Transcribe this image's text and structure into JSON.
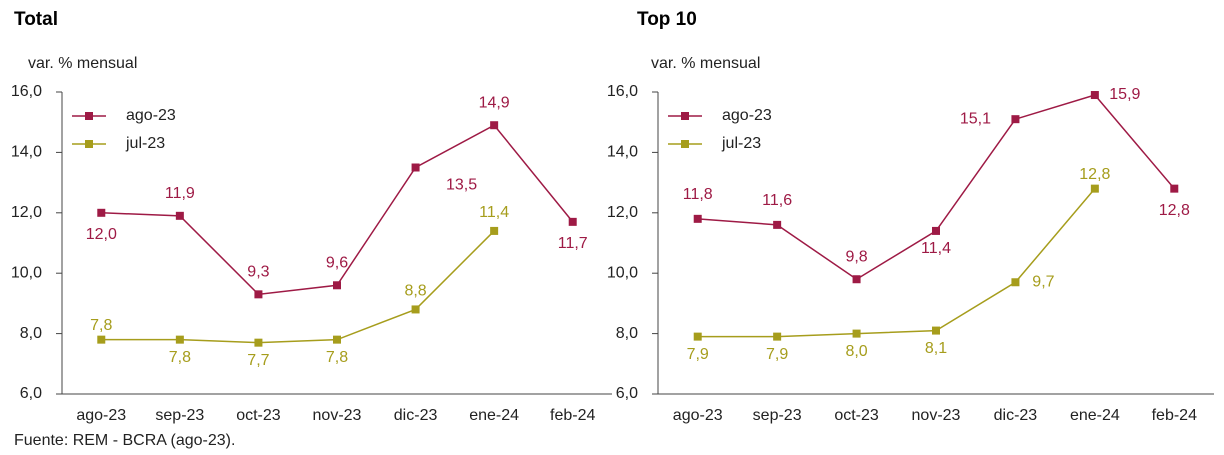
{
  "chart_data": [
    {
      "type": "line",
      "title": "Total",
      "y_label": "var. % mensual",
      "categories": [
        "ago-23",
        "sep-23",
        "oct-23",
        "nov-23",
        "dic-23",
        "ene-24",
        "feb-24"
      ],
      "series": [
        {
          "name": "ago-23",
          "color": "#9e1a45",
          "values": [
            12.0,
            11.9,
            9.3,
            9.6,
            13.5,
            14.9,
            11.7
          ],
          "value_labels": [
            "12,0",
            "11,9",
            "9,3",
            "9,6",
            "13,5",
            "14,9",
            "11,7"
          ]
        },
        {
          "name": "jul-23",
          "color": "#a69d1c",
          "values": [
            7.8,
            7.8,
            7.7,
            7.8,
            8.8,
            11.4,
            null
          ],
          "value_labels": [
            "7,8",
            "7,8",
            "7,7",
            "7,8",
            "8,8",
            "11,4",
            null
          ]
        }
      ],
      "ylim": [
        6,
        16
      ],
      "yticks": [
        {
          "value": 6,
          "label": "6,0"
        },
        {
          "value": 8,
          "label": "8,0"
        },
        {
          "value": 10,
          "label": "10,0"
        },
        {
          "value": 12,
          "label": "12,0"
        },
        {
          "value": 14,
          "label": "14,0"
        },
        {
          "value": 16,
          "label": "16,0"
        }
      ],
      "legend": "upper left"
    },
    {
      "type": "line",
      "title": "Top 10",
      "y_label": "var. % mensual",
      "categories": [
        "ago-23",
        "sep-23",
        "oct-23",
        "nov-23",
        "dic-23",
        "ene-24",
        "feb-24"
      ],
      "series": [
        {
          "name": "ago-23",
          "color": "#9e1a45",
          "values": [
            11.8,
            11.6,
            9.8,
            11.4,
            15.1,
            15.9,
            12.8
          ],
          "value_labels": [
            "11,8",
            "11,6",
            "9,8",
            "11,4",
            "15,1",
            "15,9",
            "12,8"
          ]
        },
        {
          "name": "jul-23",
          "color": "#a69d1c",
          "values": [
            7.9,
            7.9,
            8.0,
            8.1,
            9.7,
            12.8,
            null
          ],
          "value_labels": [
            "7,9",
            "7,9",
            "8,0",
            "8,1",
            "9,7",
            "12,8",
            null
          ]
        }
      ],
      "ylim": [
        6,
        16
      ],
      "yticks": [
        {
          "value": 6,
          "label": "6,0"
        },
        {
          "value": 8,
          "label": "8,0"
        },
        {
          "value": 10,
          "label": "10,0"
        },
        {
          "value": 12,
          "label": "12,0"
        },
        {
          "value": 14,
          "label": "14,0"
        },
        {
          "value": 16,
          "label": "16,0"
        }
      ],
      "legend": "upper left"
    }
  ],
  "source": "Fuente: REM - BCRA (ago-23)."
}
